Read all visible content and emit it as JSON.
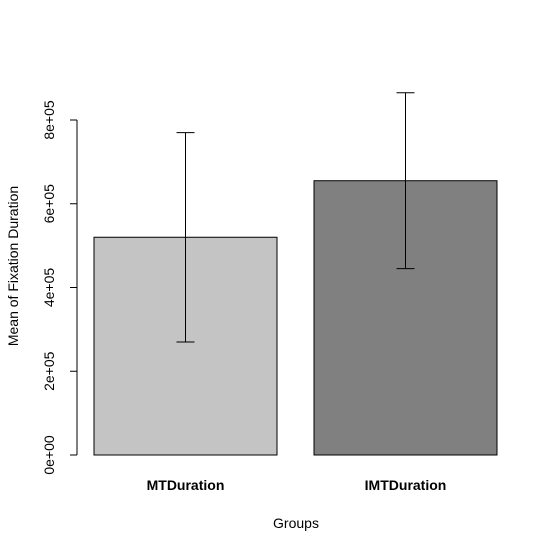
{
  "chart_data": {
    "type": "bar",
    "categories": [
      "MTDuration",
      "IMTDuration"
    ],
    "values": [
      520000,
      655000
    ],
    "error_low": [
      270000,
      445000
    ],
    "error_high": [
      770000,
      865000
    ],
    "colors": [
      "#c4c4c4",
      "#808080"
    ],
    "xlabel": "Groups",
    "ylabel": "Mean of Fixation Duration",
    "ylim": [
      0,
      800000
    ],
    "yticks": [
      0,
      200000,
      400000,
      600000,
      800000
    ],
    "ytick_labels": [
      "0e+00",
      "2e+05",
      "4e+05",
      "6e+05",
      "8e+05"
    ]
  }
}
